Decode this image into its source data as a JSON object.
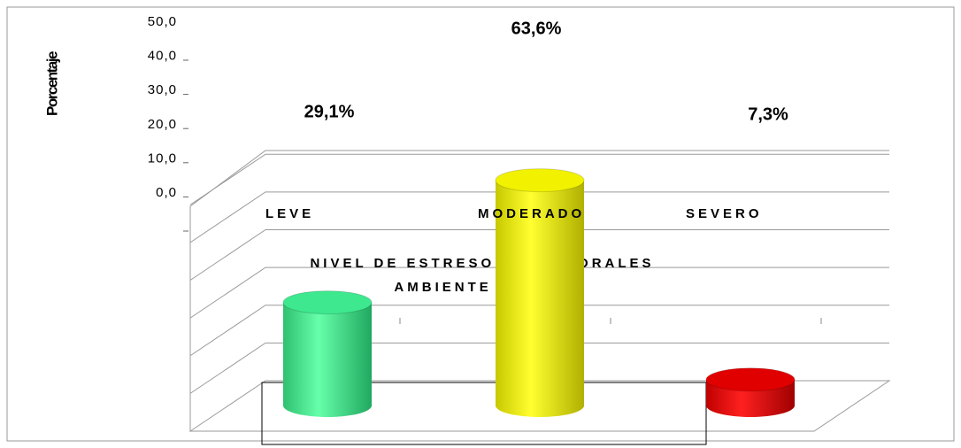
{
  "chart_data": {
    "type": "bar3d",
    "ylabel": "Porcentaje",
    "xlabel": [
      "NIVEL DE ESTRESORES LABORALES",
      "AMBIENTE SOCIAL"
    ],
    "categories": [
      "LEVE",
      "MODERADO",
      "SEVERO"
    ],
    "values": [
      29.1,
      63.6,
      7.3
    ],
    "value_labels": [
      "29,1%",
      "63,6%",
      "7,3%"
    ],
    "colors": [
      "#3ee88e",
      "#f2f200",
      "#e00000"
    ],
    "ylim": [
      0,
      70
    ],
    "yticks": [
      {
        "value": 0,
        "label": "0,0"
      },
      {
        "value": 10,
        "label": "10,0"
      },
      {
        "value": 20,
        "label": "20,0"
      },
      {
        "value": 30,
        "label": "30,0"
      },
      {
        "value": 40,
        "label": "40,0"
      },
      {
        "value": 50,
        "label": "50,0"
      }
    ]
  }
}
